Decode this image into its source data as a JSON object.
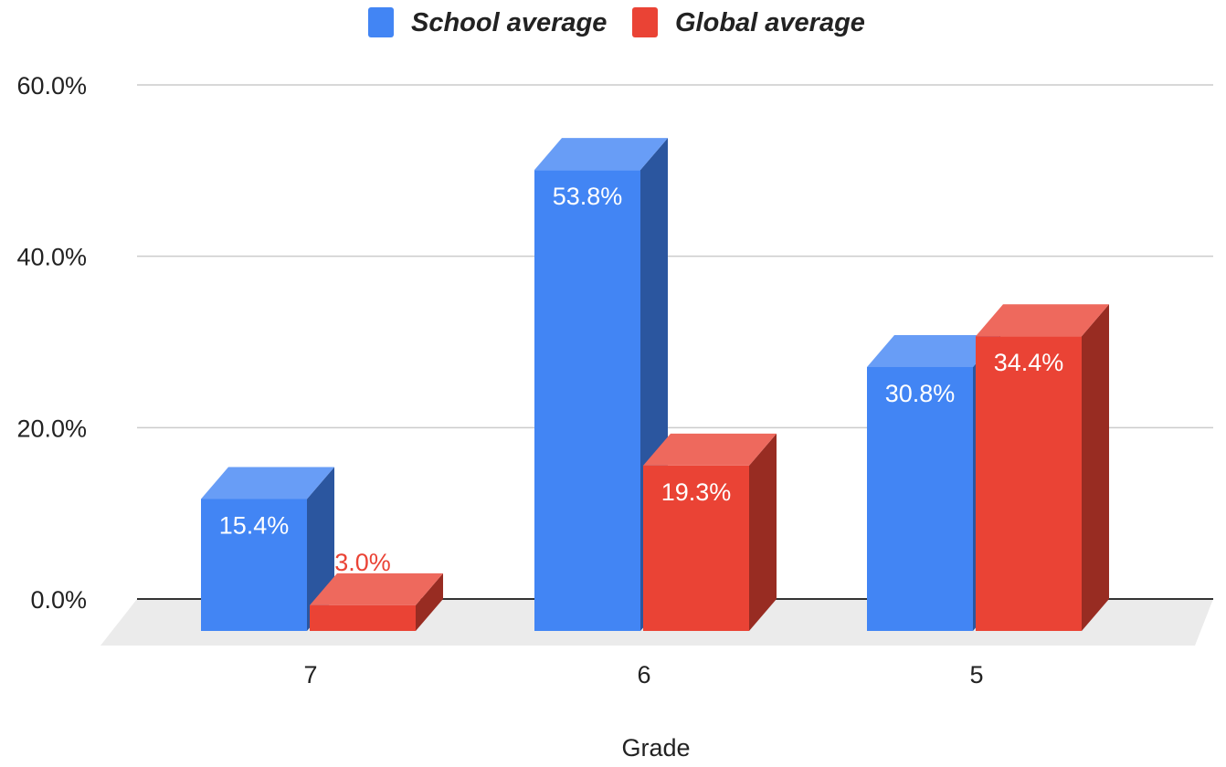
{
  "chart_data": {
    "type": "bar",
    "style": "3d",
    "categories": [
      "7",
      "6",
      "5"
    ],
    "series": [
      {
        "name": "School average",
        "values": [
          15.4,
          53.8,
          30.8
        ],
        "labels": [
          "15.4%",
          "53.8%",
          "30.8%"
        ],
        "color": "#4285F4",
        "label_color": "#ffffff"
      },
      {
        "name": "Global average",
        "values": [
          3.0,
          19.3,
          34.4
        ],
        "labels": [
          "3.0%",
          "19.3%",
          "34.4%"
        ],
        "color": "#EA4335",
        "label_color": "#ffffff"
      }
    ],
    "y_ticks": [
      "0.0%",
      "20.0%",
      "40.0%",
      "60.0%"
    ],
    "y_tick_values": [
      0,
      20,
      40,
      60
    ],
    "ylim": [
      0,
      60
    ],
    "xlabel": "Grade",
    "ylabel": "",
    "grid": true,
    "legend_position": "top-center"
  }
}
